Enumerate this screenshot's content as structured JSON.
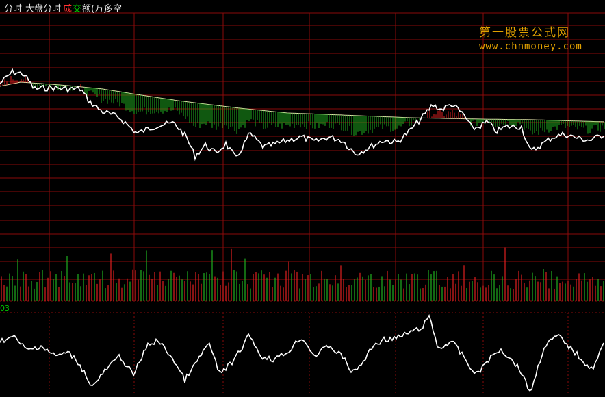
{
  "toolbar": {
    "tab_fenshi": "分时",
    "tab_dapan": "大盘分时",
    "tab_cheng": "成",
    "tab_jiao": "交",
    "tab_e": "额(万)",
    "tab_duokong": "多空"
  },
  "watermark": {
    "title": "第一股票公式网",
    "url": "www.chnmoney.com"
  },
  "indicator": {
    "value_label": "03"
  },
  "colors": {
    "grid": "#8a0a0a",
    "up": "#e02020",
    "down": "#20b020",
    "price_line": "#ffffff",
    "avg_line": "#e8e8b0",
    "watermark": "#e0a000"
  }
}
